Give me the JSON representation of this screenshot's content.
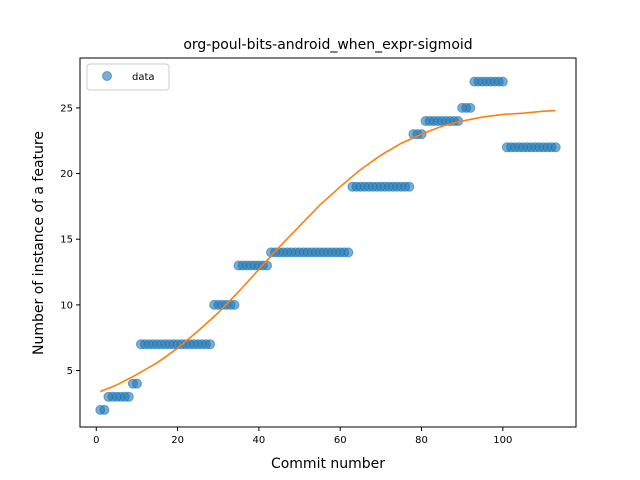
{
  "chart_data": {
    "type": "scatter",
    "title": "org-poul-bits-android_when_expr-sigmoid",
    "xlabel": "Commit number",
    "ylabel": "Number of instance of a feature",
    "xlim": [
      -4,
      118
    ],
    "ylim": [
      0.7,
      28.8
    ],
    "xticks": [
      0,
      20,
      40,
      60,
      80,
      100
    ],
    "yticks": [
      5,
      10,
      15,
      20,
      25
    ],
    "grid": false,
    "legend": {
      "placement": "top-left",
      "entries": [
        "data"
      ]
    },
    "colors": {
      "data": "#1f77b4",
      "fit": "#ff7f0e"
    },
    "series": [
      {
        "name": "data",
        "kind": "scatter",
        "points": [
          [
            1,
            2
          ],
          [
            2,
            2
          ],
          [
            3,
            3
          ],
          [
            4,
            3
          ],
          [
            5,
            3
          ],
          [
            6,
            3
          ],
          [
            7,
            3
          ],
          [
            8,
            3
          ],
          [
            9,
            4
          ],
          [
            10,
            4
          ],
          [
            11,
            7
          ],
          [
            12,
            7
          ],
          [
            13,
            7
          ],
          [
            14,
            7
          ],
          [
            15,
            7
          ],
          [
            16,
            7
          ],
          [
            17,
            7
          ],
          [
            18,
            7
          ],
          [
            19,
            7
          ],
          [
            20,
            7
          ],
          [
            21,
            7
          ],
          [
            22,
            7
          ],
          [
            23,
            7
          ],
          [
            24,
            7
          ],
          [
            25,
            7
          ],
          [
            26,
            7
          ],
          [
            27,
            7
          ],
          [
            28,
            7
          ],
          [
            29,
            10
          ],
          [
            30,
            10
          ],
          [
            31,
            10
          ],
          [
            32,
            10
          ],
          [
            33,
            10
          ],
          [
            34,
            10
          ],
          [
            35,
            13
          ],
          [
            36,
            13
          ],
          [
            37,
            13
          ],
          [
            38,
            13
          ],
          [
            39,
            13
          ],
          [
            40,
            13
          ],
          [
            41,
            13
          ],
          [
            42,
            13
          ],
          [
            43,
            14
          ],
          [
            44,
            14
          ],
          [
            45,
            14
          ],
          [
            46,
            14
          ],
          [
            47,
            14
          ],
          [
            48,
            14
          ],
          [
            49,
            14
          ],
          [
            50,
            14
          ],
          [
            51,
            14
          ],
          [
            52,
            14
          ],
          [
            53,
            14
          ],
          [
            54,
            14
          ],
          [
            55,
            14
          ],
          [
            56,
            14
          ],
          [
            57,
            14
          ],
          [
            58,
            14
          ],
          [
            59,
            14
          ],
          [
            60,
            14
          ],
          [
            61,
            14
          ],
          [
            62,
            14
          ],
          [
            63,
            19
          ],
          [
            64,
            19
          ],
          [
            65,
            19
          ],
          [
            66,
            19
          ],
          [
            67,
            19
          ],
          [
            68,
            19
          ],
          [
            69,
            19
          ],
          [
            70,
            19
          ],
          [
            71,
            19
          ],
          [
            72,
            19
          ],
          [
            73,
            19
          ],
          [
            74,
            19
          ],
          [
            75,
            19
          ],
          [
            76,
            19
          ],
          [
            77,
            19
          ],
          [
            78,
            23
          ],
          [
            79,
            23
          ],
          [
            80,
            23
          ],
          [
            81,
            24
          ],
          [
            82,
            24
          ],
          [
            83,
            24
          ],
          [
            84,
            24
          ],
          [
            85,
            24
          ],
          [
            86,
            24
          ],
          [
            87,
            24
          ],
          [
            88,
            24
          ],
          [
            89,
            24
          ],
          [
            90,
            25
          ],
          [
            91,
            25
          ],
          [
            92,
            25
          ],
          [
            93,
            27
          ],
          [
            94,
            27
          ],
          [
            95,
            27
          ],
          [
            96,
            27
          ],
          [
            97,
            27
          ],
          [
            98,
            27
          ],
          [
            99,
            27
          ],
          [
            100,
            27
          ],
          [
            101,
            22
          ],
          [
            102,
            22
          ],
          [
            103,
            22
          ],
          [
            104,
            22
          ],
          [
            105,
            22
          ],
          [
            106,
            22
          ],
          [
            107,
            22
          ],
          [
            108,
            22
          ],
          [
            109,
            22
          ],
          [
            110,
            22
          ],
          [
            111,
            22
          ],
          [
            112,
            22
          ],
          [
            113,
            22
          ]
        ]
      },
      {
        "kind": "line",
        "points": [
          [
            1,
            3.4
          ],
          [
            5,
            3.9
          ],
          [
            10,
            4.7
          ],
          [
            15,
            5.6
          ],
          [
            20,
            6.7
          ],
          [
            25,
            8.0
          ],
          [
            30,
            9.4
          ],
          [
            35,
            11.0
          ],
          [
            40,
            12.7
          ],
          [
            45,
            14.4
          ],
          [
            50,
            16.0
          ],
          [
            55,
            17.6
          ],
          [
            60,
            19.0
          ],
          [
            65,
            20.3
          ],
          [
            70,
            21.4
          ],
          [
            75,
            22.3
          ],
          [
            80,
            23.0
          ],
          [
            85,
            23.6
          ],
          [
            90,
            24.0
          ],
          [
            95,
            24.3
          ],
          [
            100,
            24.5
          ],
          [
            105,
            24.6
          ],
          [
            110,
            24.75
          ],
          [
            113,
            24.8
          ]
        ]
      }
    ]
  }
}
